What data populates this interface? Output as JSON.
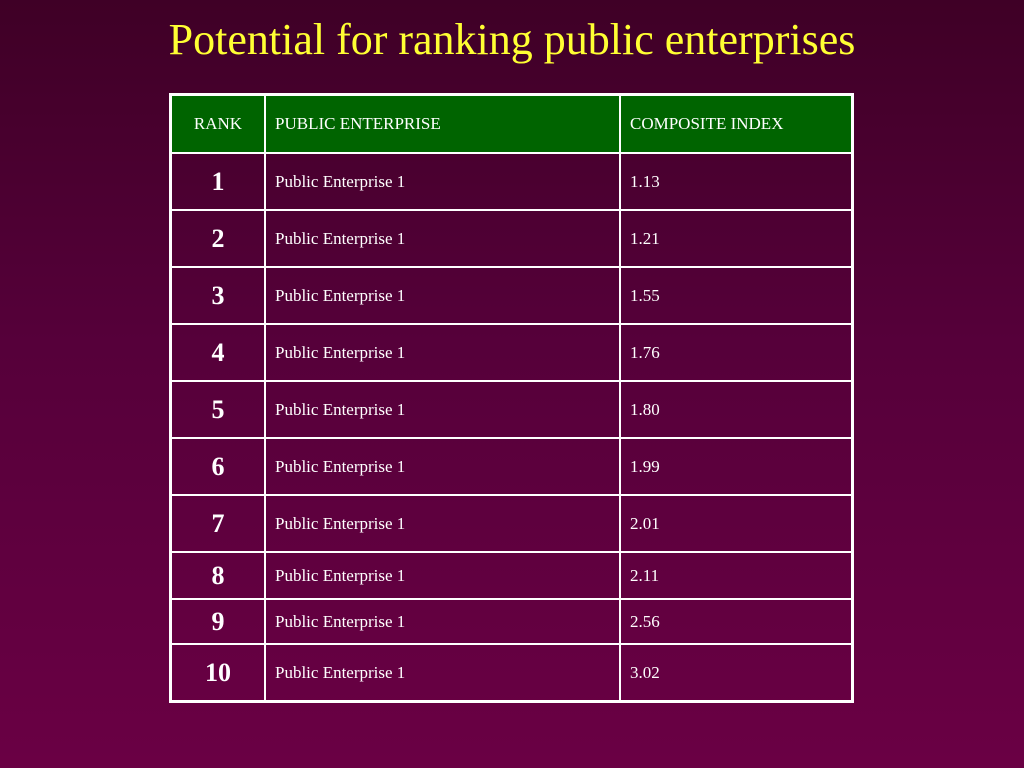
{
  "slide": {
    "title": "Potential for ranking public enterprises"
  },
  "table": {
    "headers": {
      "rank": "RANK",
      "enterprise": "PUBLIC ENTERPRISE",
      "index": "COMPOSITE INDEX"
    },
    "rows": [
      {
        "rank": "1",
        "enterprise": "Public Enterprise 1",
        "index": "1.13"
      },
      {
        "rank": "2",
        "enterprise": "Public Enterprise 1",
        "index": "1.21"
      },
      {
        "rank": "3",
        "enterprise": "Public Enterprise 1",
        "index": "1.55"
      },
      {
        "rank": "4",
        "enterprise": "Public Enterprise 1",
        "index": "1.76"
      },
      {
        "rank": "5",
        "enterprise": "Public Enterprise 1",
        "index": "1.80"
      },
      {
        "rank": "6",
        "enterprise": "Public Enterprise 1",
        "index": "1.99"
      },
      {
        "rank": "7",
        "enterprise": "Public Enterprise 1",
        "index": "2.01"
      },
      {
        "rank": "8",
        "enterprise": "Public Enterprise 1",
        "index": "2.11"
      },
      {
        "rank": "9",
        "enterprise": "Public Enterprise 1",
        "index": "2.56"
      },
      {
        "rank": "10",
        "enterprise": "Public Enterprise 1",
        "index": "3.02"
      }
    ]
  },
  "colors": {
    "background": "#56003a",
    "title": "#ffff33",
    "header_fill": "#006400",
    "grid": "#ffffff",
    "text": "#ffffff"
  }
}
